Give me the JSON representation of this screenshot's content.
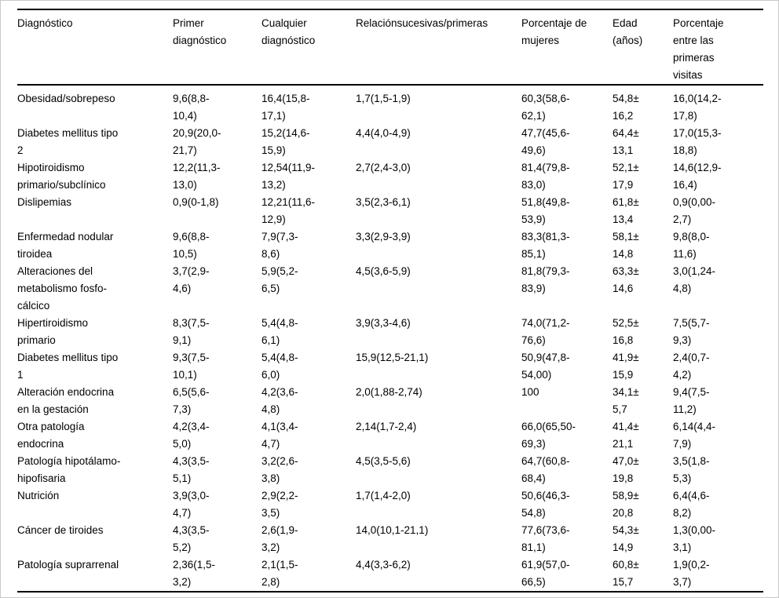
{
  "styles": {
    "background": "#ffffff",
    "text_color": "#000000",
    "rule_color": "#000000",
    "frame_border_color": "#c9c9c9"
  },
  "chart_data": {
    "type": "table",
    "columns": [
      "Diagnóstico",
      "Primer diagnóstico",
      "Cualquier diagnóstico",
      "Relaciónsucesivas/primeras",
      "Porcentaje de mujeres",
      "Edad (años)",
      "Porcentaje entre las primeras visitas"
    ],
    "rows": [
      [
        "Obesidad/sobrepeso",
        "9,6(8,8-10,4)",
        "16,4(15,8-17,1)",
        "1,7(1,5-1,9)",
        "60,3(58,6-62,1)",
        "54,8±16,2",
        "16,0(14,2-17,8)"
      ],
      [
        "Diabetes mellitus tipo 2",
        "20,9(20,0-21,7)",
        "15,2(14,6-15,9)",
        "4,4(4,0-4,9)",
        "47,7(45,6-49,6)",
        "64,4±13,1",
        "17,0(15,3-18,8)"
      ],
      [
        "Hipotiroidismo primario/subclínico",
        "12,2(11,3-13,0)",
        "12,54(11,9-13,2)",
        "2,7(2,4-3,0)",
        "81,4(79,8-83,0)",
        "52,1±17,9",
        "14,6(12,9-16,4)"
      ],
      [
        "Dislipemias",
        "0,9(0-1,8)",
        "12,21(11,6-12,9)",
        "3,5(2,3-6,1)",
        "51,8(49,8-53,9)",
        "61,8±13,4",
        "0,9(0,00-2,7)"
      ],
      [
        "Enfermedad nodular tiroidea",
        "9,6(8,8-10,5)",
        "7,9(7,3-8,6)",
        "3,3(2,9-3,9)",
        "83,3(81,3-85,1)",
        "58,1±14,8",
        "9,8(8,0-11,6)"
      ],
      [
        "Alteraciones del metabolismo fosfo-cálcico",
        "3,7(2,9-4,6)",
        "5,9(5,2-6,5)",
        "4,5(3,6-5,9)",
        "81,8(79,3-83,9)",
        "63,3±14,6",
        "3,0(1,24-4,8)"
      ],
      [
        "Hipertiroidismo primario",
        "8,3(7,5-9,1)",
        "5,4(4,8-6,1)",
        "3,9(3,3-4,6)",
        "74,0(71,2-76,6)",
        "52,5±16,8",
        "7,5(5,7-9,3)"
      ],
      [
        "Diabetes mellitus tipo 1",
        "9,3(7,5-10,1)",
        "5,4(4,8-6,0)",
        "15,9(12,5-21,1)",
        "50,9(47,8-54,00)",
        "41,9±15,9",
        "2,4(0,7-4,2)"
      ],
      [
        "Alteración endocrina en la gestación",
        "6,5(5,6-7,3)",
        "4,2(3,6-4,8)",
        "2,0(1,88-2,74)",
        "100",
        "34,1±5,7",
        "9,4(7,5-11,2)"
      ],
      [
        "Otra patología endocrina",
        "4,2(3,4-5,0)",
        "4,1(3,4-4,7)",
        "2,14(1,7-2,4)",
        "66,0(65,50-69,3)",
        "41,4±21,1",
        "6,14(4,4-7,9)"
      ],
      [
        "Patología hipotálamo-hipofisaria",
        "4,3(3,5-5,1)",
        "3,2(2,6-3,8)",
        "4,5(3,5-5,6)",
        "64,7(60,8-68,4)",
        "47,0±19,8",
        "3,5(1,8-5,3)"
      ],
      [
        "Nutrición",
        "3,9(3,0-4,7)",
        "2,9(2,2-3,5)",
        "1,7(1,4-2,0)",
        "50,6(46,3-54,8)",
        "58,9±20,8",
        "6,4(4,6-8,2)"
      ],
      [
        "Cáncer de tiroides",
        "4,3(3,5-5,2)",
        "2,6(1,9-3,2)",
        "14,0(10,1-21,1)",
        "77,6(73,6-81,1)",
        "54,3±14,9",
        "1,3(0,00-3,1)"
      ],
      [
        "Patología suprarrenal",
        "2,36(1,5-3,2)",
        "2,1(1,5-2,8)",
        "4,4(3,3-6,2)",
        "61,9(57,0-66,5)",
        "60,8±15,7",
        "1,9(0,2-3,7)"
      ]
    ]
  }
}
